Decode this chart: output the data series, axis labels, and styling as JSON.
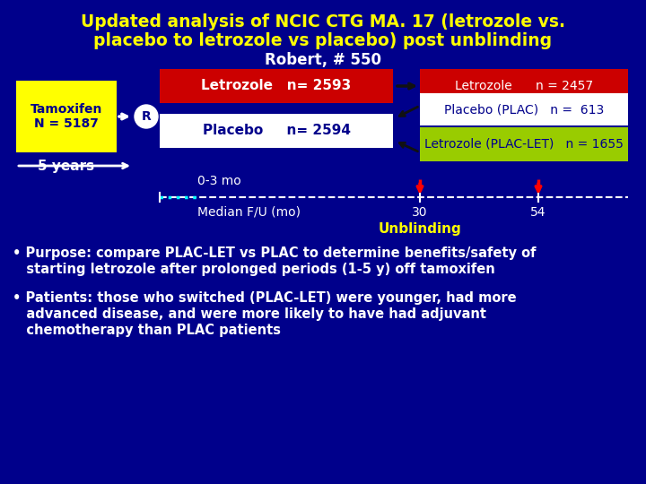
{
  "bg_color": "#00008B",
  "title_line1": "Updated analysis of NCIC CTG MA. 17 (letrozole vs.",
  "title_line2": "placebo to letrozole vs placebo) post unblinding",
  "title_line3": "Robert, # 550",
  "title_color1": "#FFFF00",
  "title_color2": "#FFFFFF",
  "tamoxifen_label": "Tamoxifen\nN = 5187",
  "tamoxifen_bg": "#FFFF00",
  "tamoxifen_text_color": "#00008B",
  "years_label": "5 years",
  "letrozole1_label": "Letrozole   n= 2593",
  "letrozole1_color": "#CC0000",
  "letrozole2_label": "Letrozole      n = 2457",
  "letrozole2_color": "#CC0000",
  "placebo1_label": "Placebo     n= 2594",
  "placebo1_bg": "#FFFFFF",
  "placebo1_text": "#00008B",
  "plac_label": "Placebo (PLAC)   n =  613",
  "plac_bg": "#FFFFFF",
  "plac_text": "#00008B",
  "placlet_label": "Letrozole (PLAC-LET)   n = 1655",
  "placlet_bg": "#99CC00",
  "placlet_text": "#00008B",
  "timeline_label": "0-3 mo",
  "median_label": "Median F/U (mo)",
  "median_val1": "30",
  "median_val2": "54",
  "unblinding_label": "Unblinding",
  "unblinding_color": "#FFFF00",
  "bullet1a": "• Purpose: compare PLAC-LET vs PLAC to determine benefits/safety of",
  "bullet1b": "   starting letrozole after prolonged periods (1-5 y) off tamoxifen",
  "bullet2a": "• Patients: those who switched (PLAC-LET) were younger, had more",
  "bullet2b": "   advanced disease, and were more likely to have had adjuvant",
  "bullet2c": "   chemotherapy than PLAC patients",
  "white": "#FFFFFF",
  "red": "#FF0000",
  "cyan": "#00FFFF"
}
